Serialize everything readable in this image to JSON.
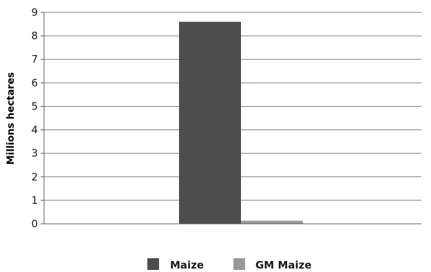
{
  "chart_data": {
    "type": "bar",
    "categories": [
      ""
    ],
    "series": [
      {
        "name": "Maize",
        "values": [
          8.6
        ],
        "color": "#4d4d4d"
      },
      {
        "name": "GM Maize",
        "values": [
          0.13
        ],
        "color": "#999999"
      }
    ],
    "title": "",
    "xlabel": "",
    "ylabel": "Millions hectares",
    "ylim": [
      0,
      9
    ],
    "yticks": [
      0,
      1,
      2,
      3,
      4,
      5,
      6,
      7,
      8,
      9
    ],
    "grid": true,
    "legend": "bottom"
  }
}
